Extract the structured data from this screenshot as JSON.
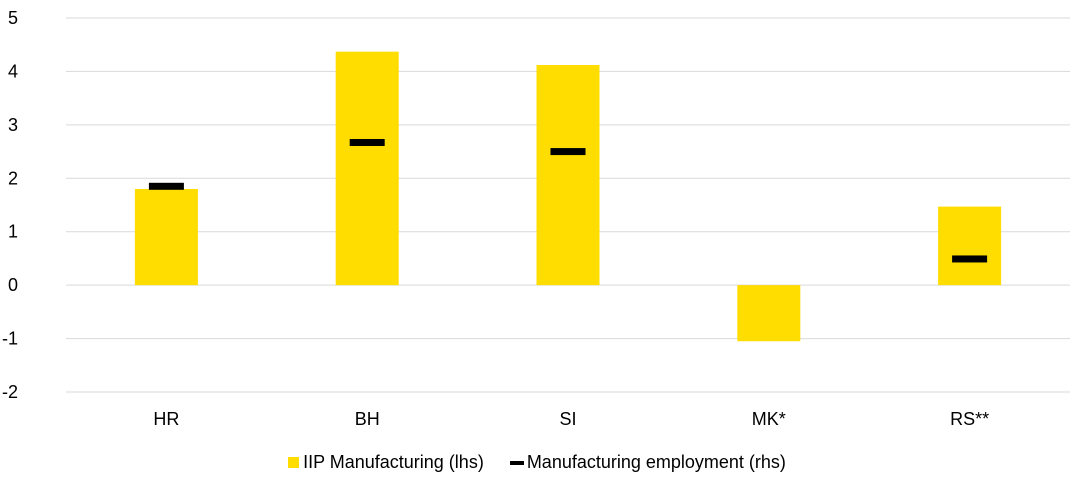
{
  "chart_data": {
    "type": "bar",
    "title": "",
    "categories": [
      "HR",
      "BH",
      "SI",
      "MK*",
      "RS**"
    ],
    "series": [
      {
        "name": "IIP Manufacturing (lhs)",
        "kind": "bar",
        "color": "#FFDD00",
        "values": [
          1.8,
          4.37,
          4.12,
          -1.05,
          1.47
        ]
      },
      {
        "name": "Manufacturing employment (rhs)",
        "kind": "marker",
        "color": "#000000",
        "values": [
          1.85,
          2.67,
          2.5,
          null,
          0.49
        ]
      }
    ],
    "y_ticks": [
      "5",
      "4",
      "3",
      "2",
      "1",
      "0",
      "-1",
      "-2"
    ],
    "ylim": [
      -2,
      5
    ],
    "grid": true,
    "legend_position": "bottom"
  }
}
